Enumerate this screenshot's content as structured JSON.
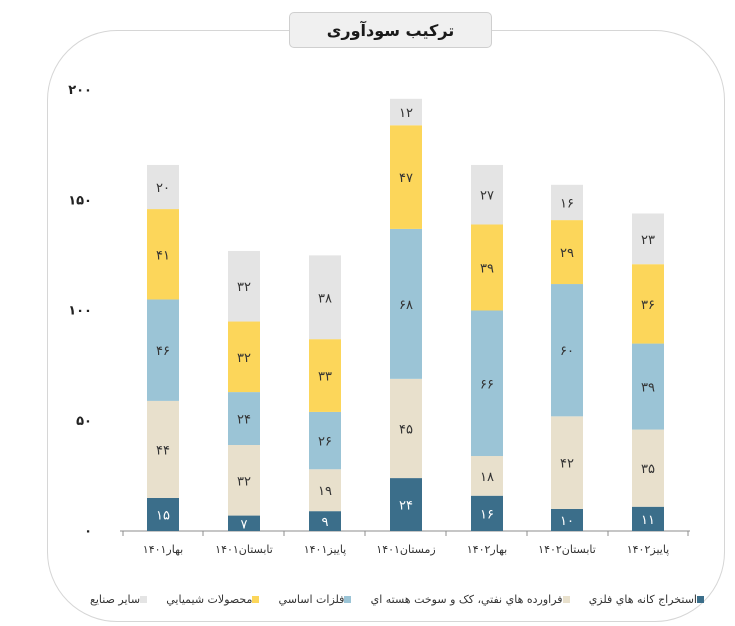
{
  "colors": {
    "border": "#d6d6d6",
    "title_bg": "#f0f0f0",
    "axis": "#8c8c8c"
  },
  "chart_data": {
    "type": "bar",
    "stacked": true,
    "title": "ترکیب سودآوری",
    "ylim": [
      0,
      200
    ],
    "ytick_values": [
      0,
      50,
      100,
      150,
      200
    ],
    "ytick_labels": [
      "۰",
      "۵۰",
      "۱۰۰",
      "۱۵۰",
      "۲۰۰"
    ],
    "categories": [
      "بهار۱۴۰۱",
      "تابستان۱۴۰۱",
      "پاییز۱۴۰۱",
      "زمستان۱۴۰۱",
      "بهار۱۴۰۲",
      "تابستان۱۴۰۲",
      "پاییز۱۴۰۲"
    ],
    "series": [
      {
        "name": "استخراج کانه هاي فلزي",
        "color": "#3b6e8a",
        "text_color": "#ffffff",
        "values": [
          15,
          7,
          9,
          24,
          16,
          10,
          11
        ],
        "labels": [
          "۱۵",
          "۷",
          "۹",
          "۲۴",
          "۱۶",
          "۱۰",
          "۱۱"
        ]
      },
      {
        "name": "فراورده هاي نفتي، كک و سوخت هسته اي",
        "color": "#e8e0cc",
        "text_color": "#333333",
        "values": [
          44,
          32,
          19,
          45,
          18,
          42,
          35
        ],
        "labels": [
          "۴۴",
          "۳۲",
          "۱۹",
          "۴۵",
          "۱۸",
          "۴۲",
          "۳۵"
        ]
      },
      {
        "name": "فلزات اساسي",
        "color": "#9bc4d6",
        "text_color": "#333333",
        "values": [
          46,
          24,
          26,
          68,
          66,
          60,
          39
        ],
        "labels": [
          "۴۶",
          "۲۴",
          "۲۶",
          "۶۸",
          "۶۶",
          "۶۰",
          "۳۹"
        ]
      },
      {
        "name": "محصولات شيميايي",
        "color": "#fcd65a",
        "text_color": "#333333",
        "values": [
          41,
          32,
          33,
          47,
          39,
          29,
          36
        ],
        "labels": [
          "۴۱",
          "۳۲",
          "۳۳",
          "۴۷",
          "۳۹",
          "۲۹",
          "۳۶"
        ]
      },
      {
        "name": "ساير صنايع",
        "color": "#e4e4e4",
        "text_color": "#333333",
        "values": [
          20,
          32,
          38,
          12,
          27,
          16,
          23
        ],
        "labels": [
          "۲۰",
          "۳۲",
          "۳۸",
          "۱۲",
          "۲۷",
          "۱۶",
          "۲۳"
        ]
      }
    ]
  }
}
